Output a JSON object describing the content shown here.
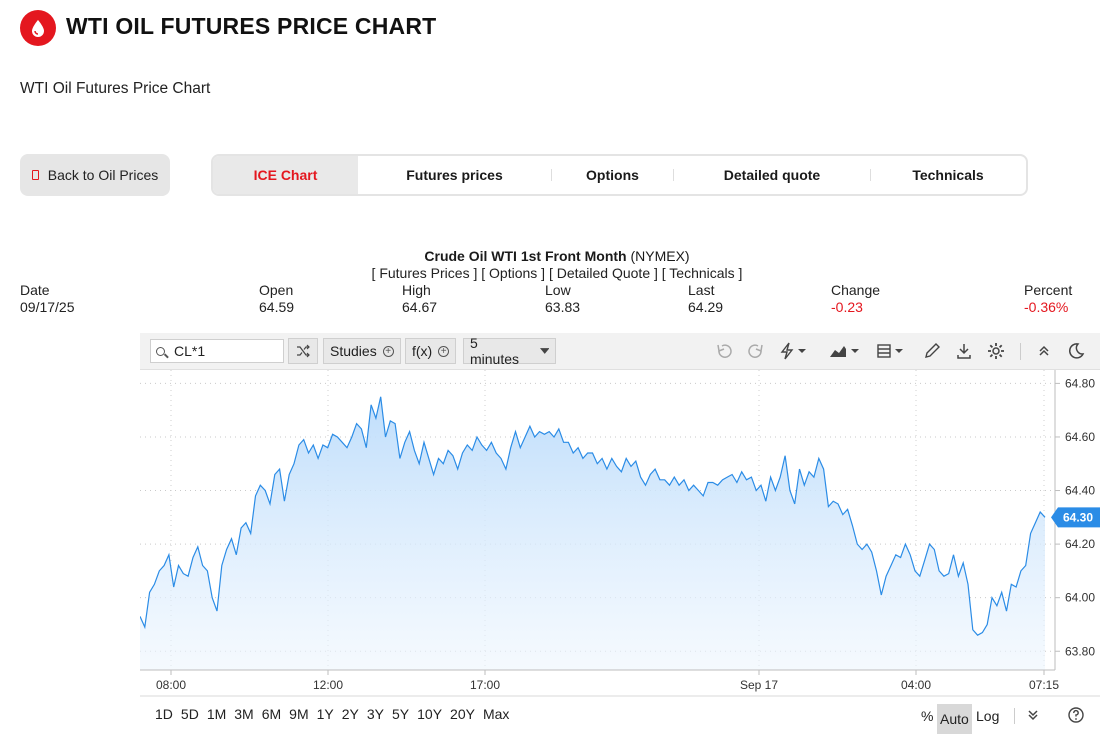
{
  "header": {
    "title": "WTI OIL FUTURES PRICE CHART",
    "subtitle": "WTI Oil Futures Price Chart",
    "brand_color": "#e4171f"
  },
  "nav": {
    "back_label": "Back to Oil Prices",
    "tabs": [
      {
        "label": "ICE Chart",
        "active": true
      },
      {
        "label": "Futures prices",
        "active": false
      },
      {
        "label": "Options",
        "active": false
      },
      {
        "label": "Detailed quote",
        "active": false
      },
      {
        "label": "Technicals",
        "active": false
      }
    ]
  },
  "quote": {
    "name": "Crude Oil WTI 1st Front Month",
    "exchange": "(NYMEX)",
    "links": "[ Futures Prices ] [ Options ] [ Detailed Quote ] [ Technicals ]",
    "stats": [
      {
        "label": "Date",
        "value": "09/17/25",
        "negative": false
      },
      {
        "label": "Open",
        "value": "64.59",
        "negative": false
      },
      {
        "label": "High",
        "value": "64.67",
        "negative": false
      },
      {
        "label": "Low",
        "value": "63.83",
        "negative": false
      },
      {
        "label": "Last",
        "value": "64.29",
        "negative": false
      },
      {
        "label": "Change",
        "value": "-0.23",
        "negative": true
      },
      {
        "label": "Percent",
        "value": "-0.36%",
        "negative": true
      }
    ]
  },
  "toolbar": {
    "symbol": "CL*1",
    "studies_label": "Studies",
    "fx_label": "f(x)",
    "interval_label": "5 minutes",
    "icons": [
      "undo-icon",
      "redo-icon",
      "lightning-icon",
      "chart-type-icon",
      "layout-icon",
      "pencil-icon",
      "download-icon",
      "gear-icon",
      "collapse-icon",
      "moon-icon"
    ]
  },
  "chart_data": {
    "type": "area",
    "title": "",
    "xlabel": "",
    "ylabel": "",
    "ylim": [
      63.73,
      64.85
    ],
    "y_ticks": [
      "64.80",
      "64.60",
      "64.40",
      "64.20",
      "64.00",
      "63.80"
    ],
    "x_ticks": [
      "08:00",
      "12:00",
      "17:00",
      "Sep 17",
      "04:00",
      "07:15"
    ],
    "last_value_label": "64.30",
    "line_color": "#2b8ce6",
    "series": [
      {
        "values": [
          63.93,
          63.89,
          64.02,
          64.05,
          64.1,
          64.12,
          64.16,
          64.04,
          64.12,
          64.09,
          64.08,
          64.15,
          64.19,
          64.12,
          64.1,
          64.0,
          63.95,
          64.12,
          64.18,
          64.22,
          64.16,
          64.26,
          64.28,
          64.24,
          64.38,
          64.42,
          64.4,
          64.35,
          64.46,
          64.48,
          64.36,
          64.46,
          64.5,
          64.57,
          64.59,
          64.54,
          64.57,
          64.52,
          64.57,
          64.56,
          64.61,
          64.6,
          64.58,
          64.56,
          64.6,
          64.65,
          64.63,
          64.56,
          64.72,
          64.67,
          64.75,
          64.6,
          64.66,
          64.65,
          64.52,
          64.58,
          64.62,
          64.55,
          64.5,
          64.58,
          64.52,
          64.46,
          64.52,
          64.5,
          64.55,
          64.53,
          64.48,
          64.54,
          64.57,
          64.55,
          64.6,
          64.57,
          64.55,
          64.58,
          64.54,
          64.52,
          64.48,
          64.56,
          64.62,
          64.56,
          64.6,
          64.64,
          64.6,
          64.62,
          64.61,
          64.62,
          64.6,
          64.63,
          64.58,
          64.58,
          64.54,
          64.56,
          64.52,
          64.54,
          64.54,
          64.5,
          64.52,
          64.48,
          64.52,
          64.49,
          64.47,
          64.52,
          64.49,
          64.51,
          64.45,
          64.42,
          64.46,
          64.48,
          64.44,
          64.44,
          64.42,
          64.45,
          64.42,
          64.44,
          64.4,
          64.42,
          64.4,
          64.38,
          64.43,
          64.43,
          64.42,
          64.44,
          64.45,
          64.46,
          64.43,
          64.47,
          64.44,
          64.45,
          64.4,
          64.42,
          64.36,
          64.45,
          64.4,
          64.45,
          64.53,
          64.4,
          64.35,
          64.48,
          64.42,
          64.47,
          64.45,
          64.52,
          64.48,
          64.34,
          64.36,
          64.35,
          64.31,
          64.33,
          64.27,
          64.2,
          64.18,
          64.2,
          64.17,
          64.1,
          64.01,
          64.08,
          64.12,
          64.16,
          64.15,
          64.2,
          64.16,
          64.1,
          64.08,
          64.14,
          64.2,
          64.18,
          64.1,
          64.08,
          64.09,
          64.16,
          64.08,
          64.13,
          64.05,
          63.88,
          63.86,
          63.87,
          63.9,
          64.0,
          63.97,
          64.02,
          63.95,
          64.05,
          64.04,
          64.1,
          64.12,
          64.24,
          64.28,
          64.32,
          64.3
        ]
      }
    ],
    "grid": true,
    "legend": "none"
  },
  "range_bar": {
    "ranges": [
      "1D",
      "5D",
      "1M",
      "3M",
      "6M",
      "9M",
      "1Y",
      "2Y",
      "3Y",
      "5Y",
      "10Y",
      "20Y",
      "Max"
    ],
    "percent_label": "%",
    "auto_label": "Auto",
    "log_label": "Log"
  }
}
